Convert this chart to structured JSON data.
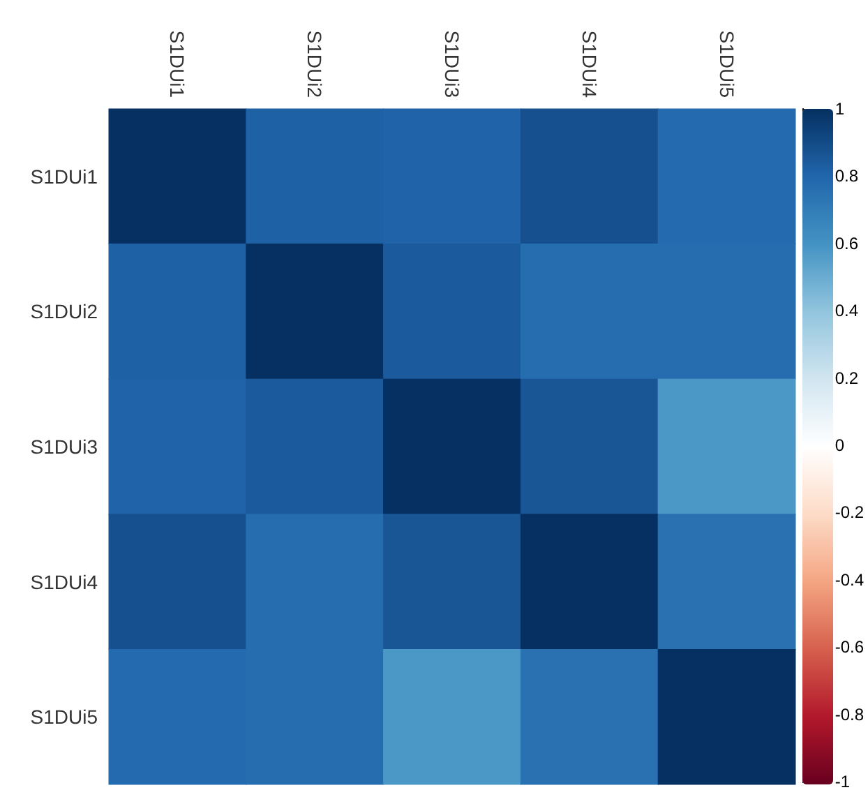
{
  "chart_data": {
    "type": "heatmap",
    "categories": [
      "S1DUi1",
      "S1DUi2",
      "S1DUi3",
      "S1DUi4",
      "S1DUi5"
    ],
    "y_categories": [
      "S1DUi1",
      "S1DUi2",
      "S1DUi3",
      "S1DUi4",
      "S1DUi5"
    ],
    "cells": [
      [
        1,
        0.82,
        0.81,
        0.88,
        0.78
      ],
      [
        0.82,
        1,
        0.84,
        0.77,
        0.77
      ],
      [
        0.81,
        0.84,
        1,
        0.86,
        0.58
      ],
      [
        0.88,
        0.77,
        0.86,
        1,
        0.75
      ],
      [
        0.78,
        0.77,
        0.58,
        0.75,
        1
      ]
    ],
    "clim": [
      -1,
      1
    ],
    "cticks": [
      1,
      0.8,
      0.6,
      0.4,
      0.2,
      0,
      -0.2,
      -0.4,
      -0.6,
      -0.8,
      -1
    ]
  }
}
